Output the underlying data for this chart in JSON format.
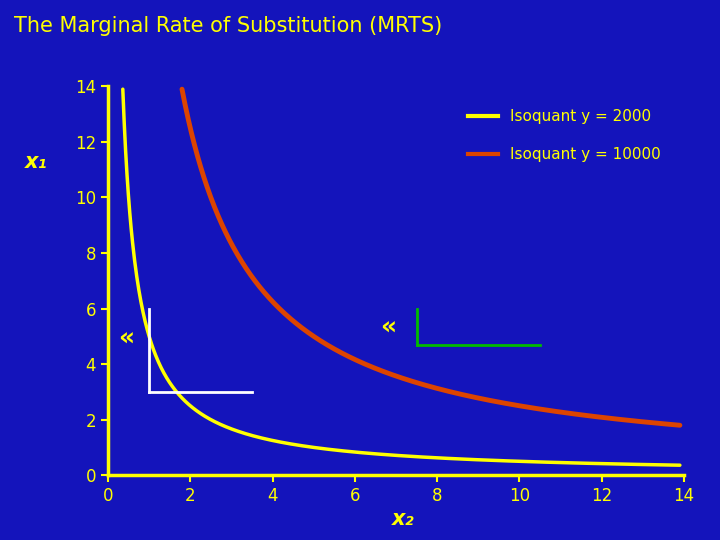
{
  "title": "The Marginal Rate of Substitution (MRTS)",
  "title_color": "#FFFF00",
  "title_fontsize": 15,
  "bg_color": "#1414BB",
  "axes_color": "#FFFF00",
  "tick_color": "#FFFF00",
  "xlabel": "x₂",
  "ylabel": "x₁",
  "xlabel_fontsize": 15,
  "ylabel_fontsize": 15,
  "xlim": [
    0,
    14
  ],
  "ylim": [
    0,
    14
  ],
  "xticks": [
    0,
    2,
    4,
    6,
    8,
    10,
    12,
    14
  ],
  "yticks": [
    0,
    2,
    4,
    6,
    8,
    10,
    12,
    14
  ],
  "isoquant1_Q": 5.0,
  "isoquant2_Q": 25.0,
  "isoquant1_color": "#FFFF00",
  "isoquant2_color": "#DD4400",
  "isoquant1_linewidth": 2.5,
  "isoquant2_linewidth": 3.5,
  "legend1_label": "Isoquant y = 2000",
  "legend2_label": "Isoquant y = 10000",
  "legend_color": "#FFFF00",
  "legend_fontsize": 11,
  "white_tri_x1": 1.0,
  "white_tri_x2": 3.5,
  "white_tri_ytop": 6.0,
  "white_tri_ybot": 3.0,
  "white_color": "#FFFFFF",
  "green_tri_x1": 7.5,
  "green_tri_x2": 10.5,
  "green_tri_ytop": 6.0,
  "green_tri_ybot": 4.7,
  "green_color": "#00BB00",
  "bracket1_x": 0.45,
  "bracket1_y": 4.9,
  "bracket2_x": 6.8,
  "bracket2_y": 5.3,
  "bracket_fontsize": 18
}
